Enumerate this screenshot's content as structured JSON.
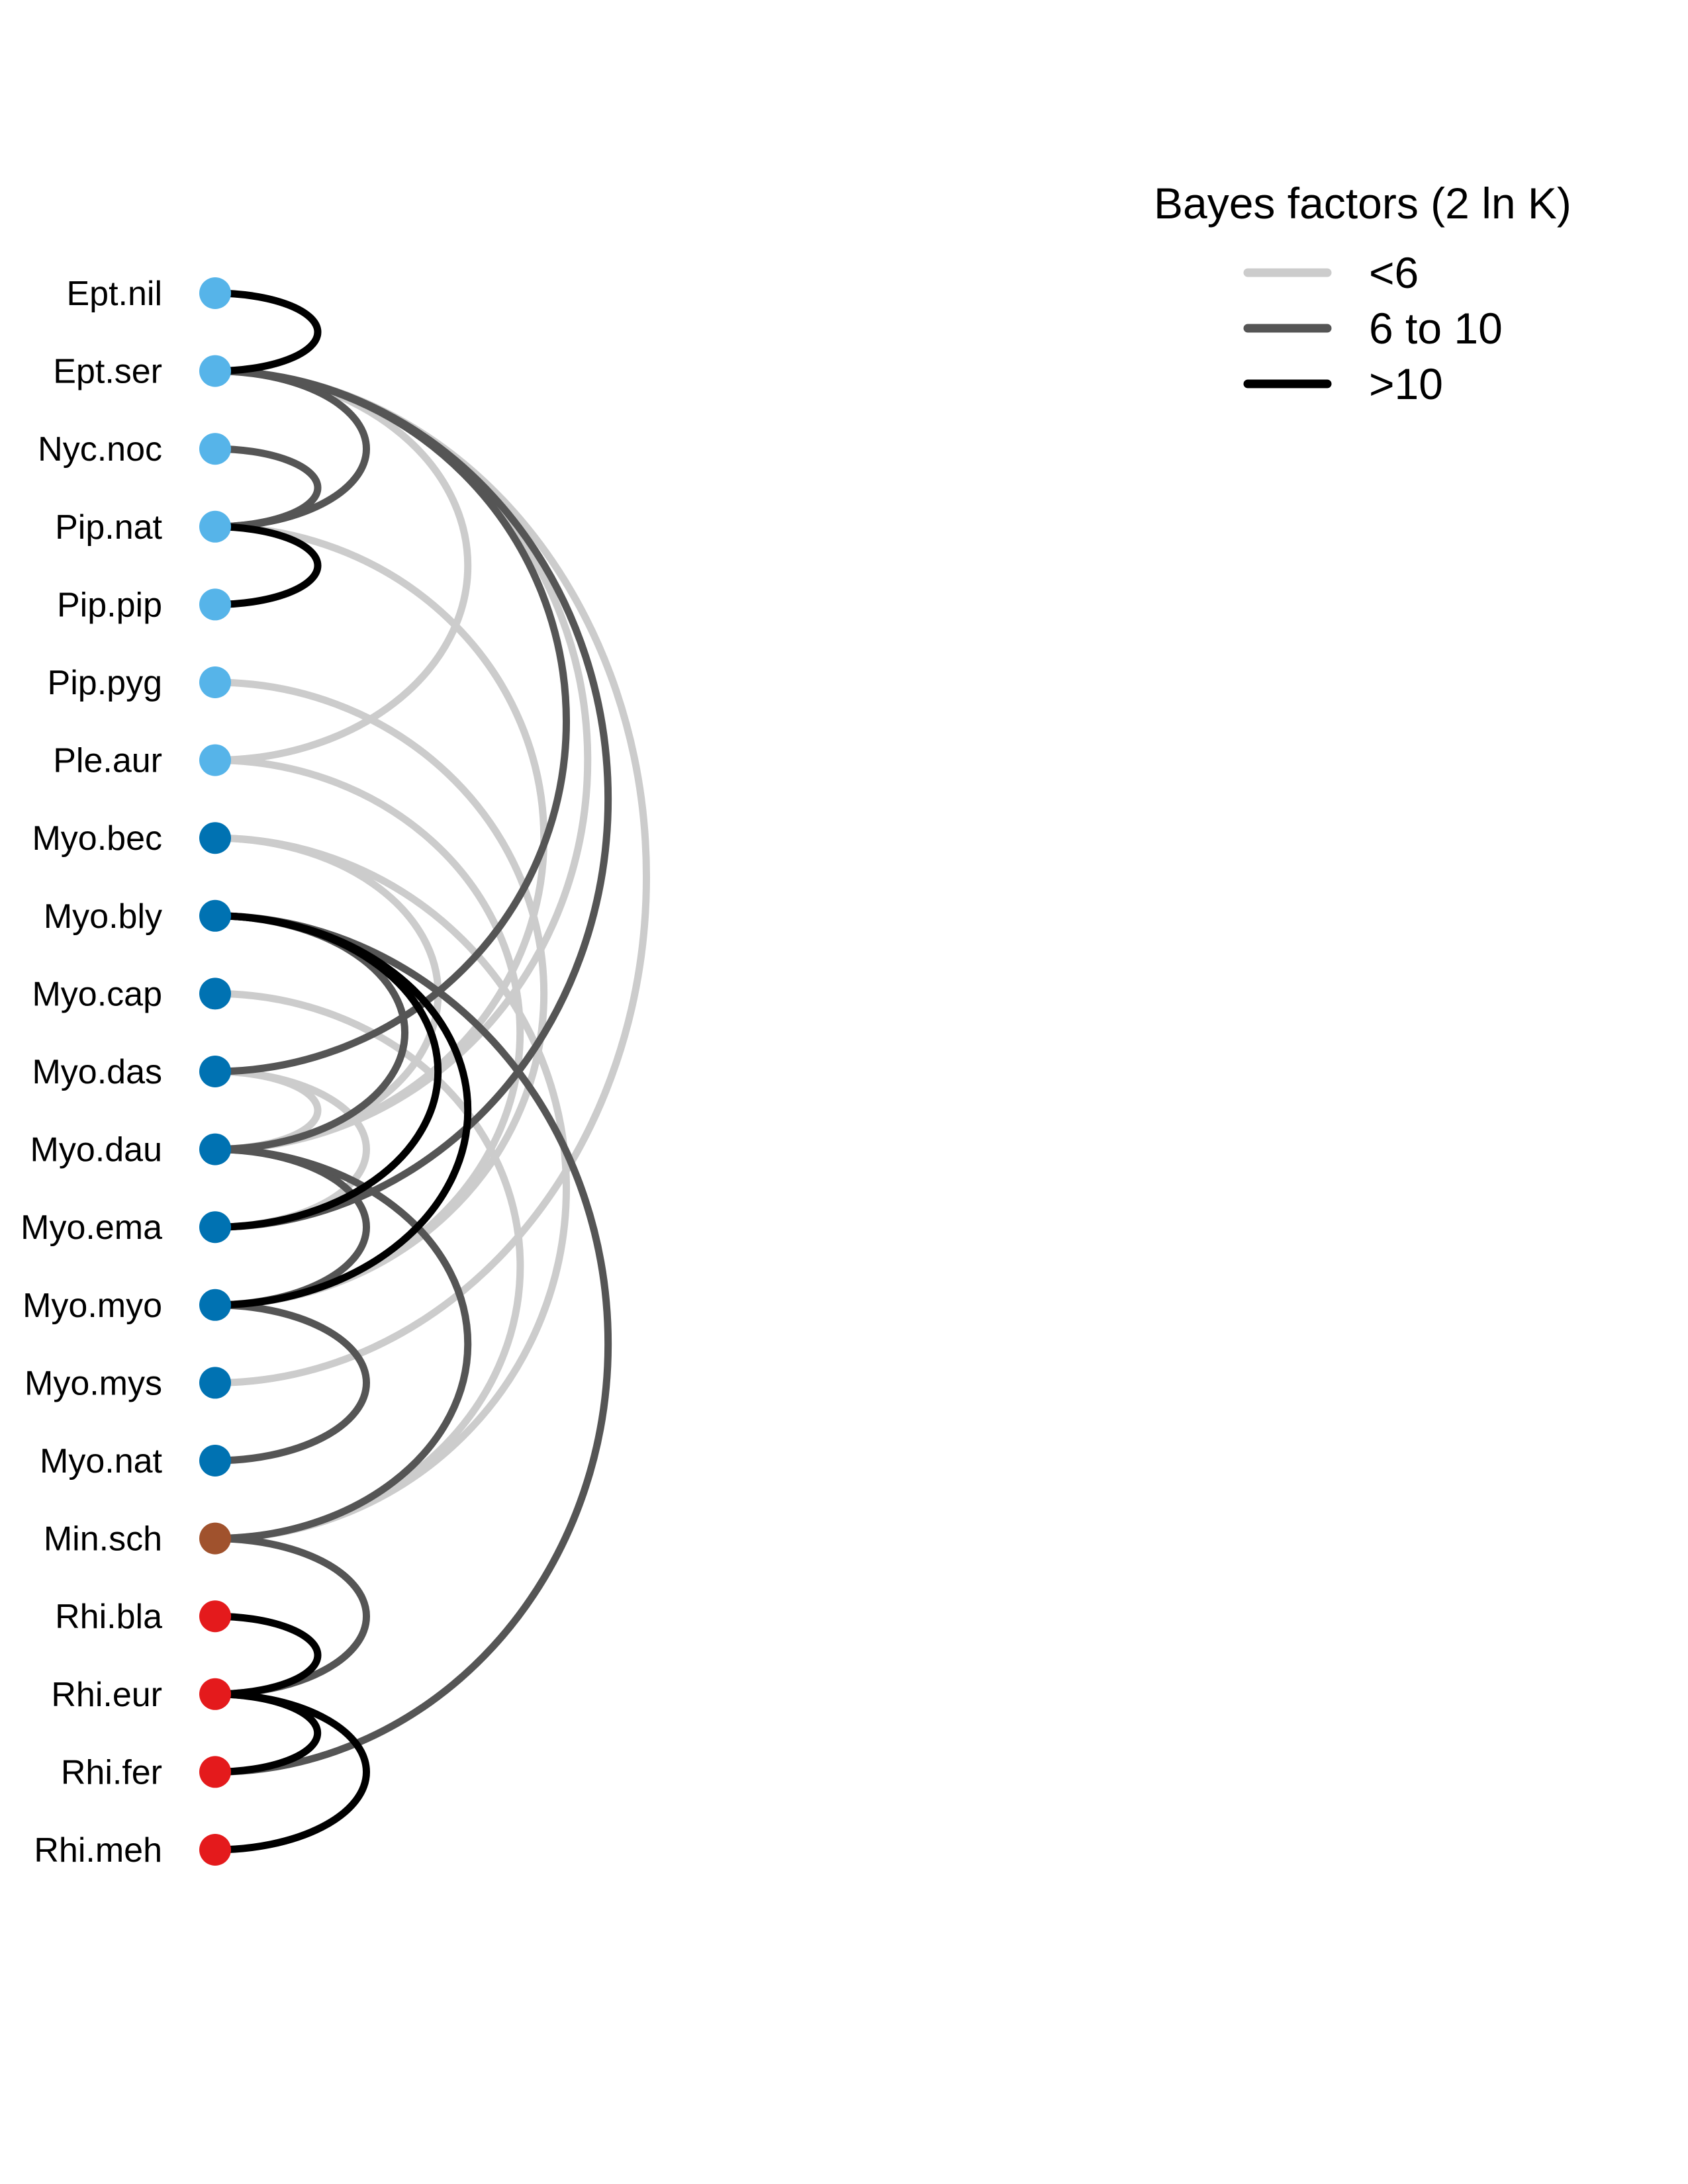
{
  "legend": {
    "title": "Bayes factors (2 ln K)",
    "categories": [
      {
        "label": "<6",
        "color": "#cccccc"
      },
      {
        "label": "6 to 10",
        "color": "#555555"
      },
      {
        "label": ">10",
        "color": "#000000"
      }
    ]
  },
  "group_colors": {
    "light-blue": "#56b4e9",
    "blue": "#0072b2",
    "brown": "#a0522d",
    "red": "#e41a1c"
  },
  "nodes": [
    {
      "label": "Ept.nil",
      "group": "light-blue"
    },
    {
      "label": "Ept.ser",
      "group": "light-blue"
    },
    {
      "label": "Nyc.noc",
      "group": "light-blue"
    },
    {
      "label": "Pip.nat",
      "group": "light-blue"
    },
    {
      "label": "Pip.pip",
      "group": "light-blue"
    },
    {
      "label": "Pip.pyg",
      "group": "light-blue"
    },
    {
      "label": "Ple.aur",
      "group": "light-blue"
    },
    {
      "label": "Myo.bec",
      "group": "blue"
    },
    {
      "label": "Myo.bly",
      "group": "blue"
    },
    {
      "label": "Myo.cap",
      "group": "blue"
    },
    {
      "label": "Myo.das",
      "group": "blue"
    },
    {
      "label": "Myo.dau",
      "group": "blue"
    },
    {
      "label": "Myo.ema",
      "group": "blue"
    },
    {
      "label": "Myo.myo",
      "group": "blue"
    },
    {
      "label": "Myo.mys",
      "group": "blue"
    },
    {
      "label": "Myo.nat",
      "group": "blue"
    },
    {
      "label": "Min.sch",
      "group": "brown"
    },
    {
      "label": "Rhi.bla",
      "group": "red"
    },
    {
      "label": "Rhi.eur",
      "group": "red"
    },
    {
      "label": "Rhi.fer",
      "group": "red"
    },
    {
      "label": "Rhi.meh",
      "group": "red"
    }
  ],
  "edges": [
    {
      "source": "Ept.nil",
      "target": "Ept.ser",
      "bf": ">10"
    },
    {
      "source": "Ept.ser",
      "target": "Pip.nat",
      "bf": "6 to 10"
    },
    {
      "source": "Ept.ser",
      "target": "Ple.aur",
      "bf": "<6"
    },
    {
      "source": "Ept.ser",
      "target": "Myo.das",
      "bf": "6 to 10"
    },
    {
      "source": "Ept.ser",
      "target": "Myo.dau",
      "bf": "<6"
    },
    {
      "source": "Ept.ser",
      "target": "Myo.ema",
      "bf": "6 to 10"
    },
    {
      "source": "Ept.ser",
      "target": "Myo.mys",
      "bf": "<6"
    },
    {
      "source": "Nyc.noc",
      "target": "Pip.nat",
      "bf": "6 to 10"
    },
    {
      "source": "Pip.nat",
      "target": "Pip.pip",
      "bf": ">10"
    },
    {
      "source": "Pip.nat",
      "target": "Myo.dau",
      "bf": "<6"
    },
    {
      "source": "Pip.pyg",
      "target": "Myo.myo",
      "bf": "<6"
    },
    {
      "source": "Ple.aur",
      "target": "Myo.myo",
      "bf": "<6"
    },
    {
      "source": "Myo.bec",
      "target": "Myo.dau",
      "bf": "<6"
    },
    {
      "source": "Myo.bec",
      "target": "Min.sch",
      "bf": "<6"
    },
    {
      "source": "Myo.bly",
      "target": "Myo.dau",
      "bf": "6 to 10"
    },
    {
      "source": "Myo.bly",
      "target": "Myo.ema",
      "bf": ">10"
    },
    {
      "source": "Myo.bly",
      "target": "Myo.myo",
      "bf": ">10"
    },
    {
      "source": "Myo.bly",
      "target": "Rhi.fer",
      "bf": "6 to 10"
    },
    {
      "source": "Myo.cap",
      "target": "Min.sch",
      "bf": "<6"
    },
    {
      "source": "Myo.das",
      "target": "Myo.dau",
      "bf": "<6"
    },
    {
      "source": "Myo.das",
      "target": "Myo.ema",
      "bf": "<6"
    },
    {
      "source": "Myo.dau",
      "target": "Myo.myo",
      "bf": "6 to 10"
    },
    {
      "source": "Myo.dau",
      "target": "Min.sch",
      "bf": "6 to 10"
    },
    {
      "source": "Myo.myo",
      "target": "Myo.nat",
      "bf": "6 to 10"
    },
    {
      "source": "Min.sch",
      "target": "Rhi.eur",
      "bf": "6 to 10"
    },
    {
      "source": "Rhi.bla",
      "target": "Rhi.eur",
      "bf": ">10"
    },
    {
      "source": "Rhi.eur",
      "target": "Rhi.fer",
      "bf": ">10"
    },
    {
      "source": "Rhi.eur",
      "target": "Rhi.meh",
      "bf": ">10"
    }
  ]
}
